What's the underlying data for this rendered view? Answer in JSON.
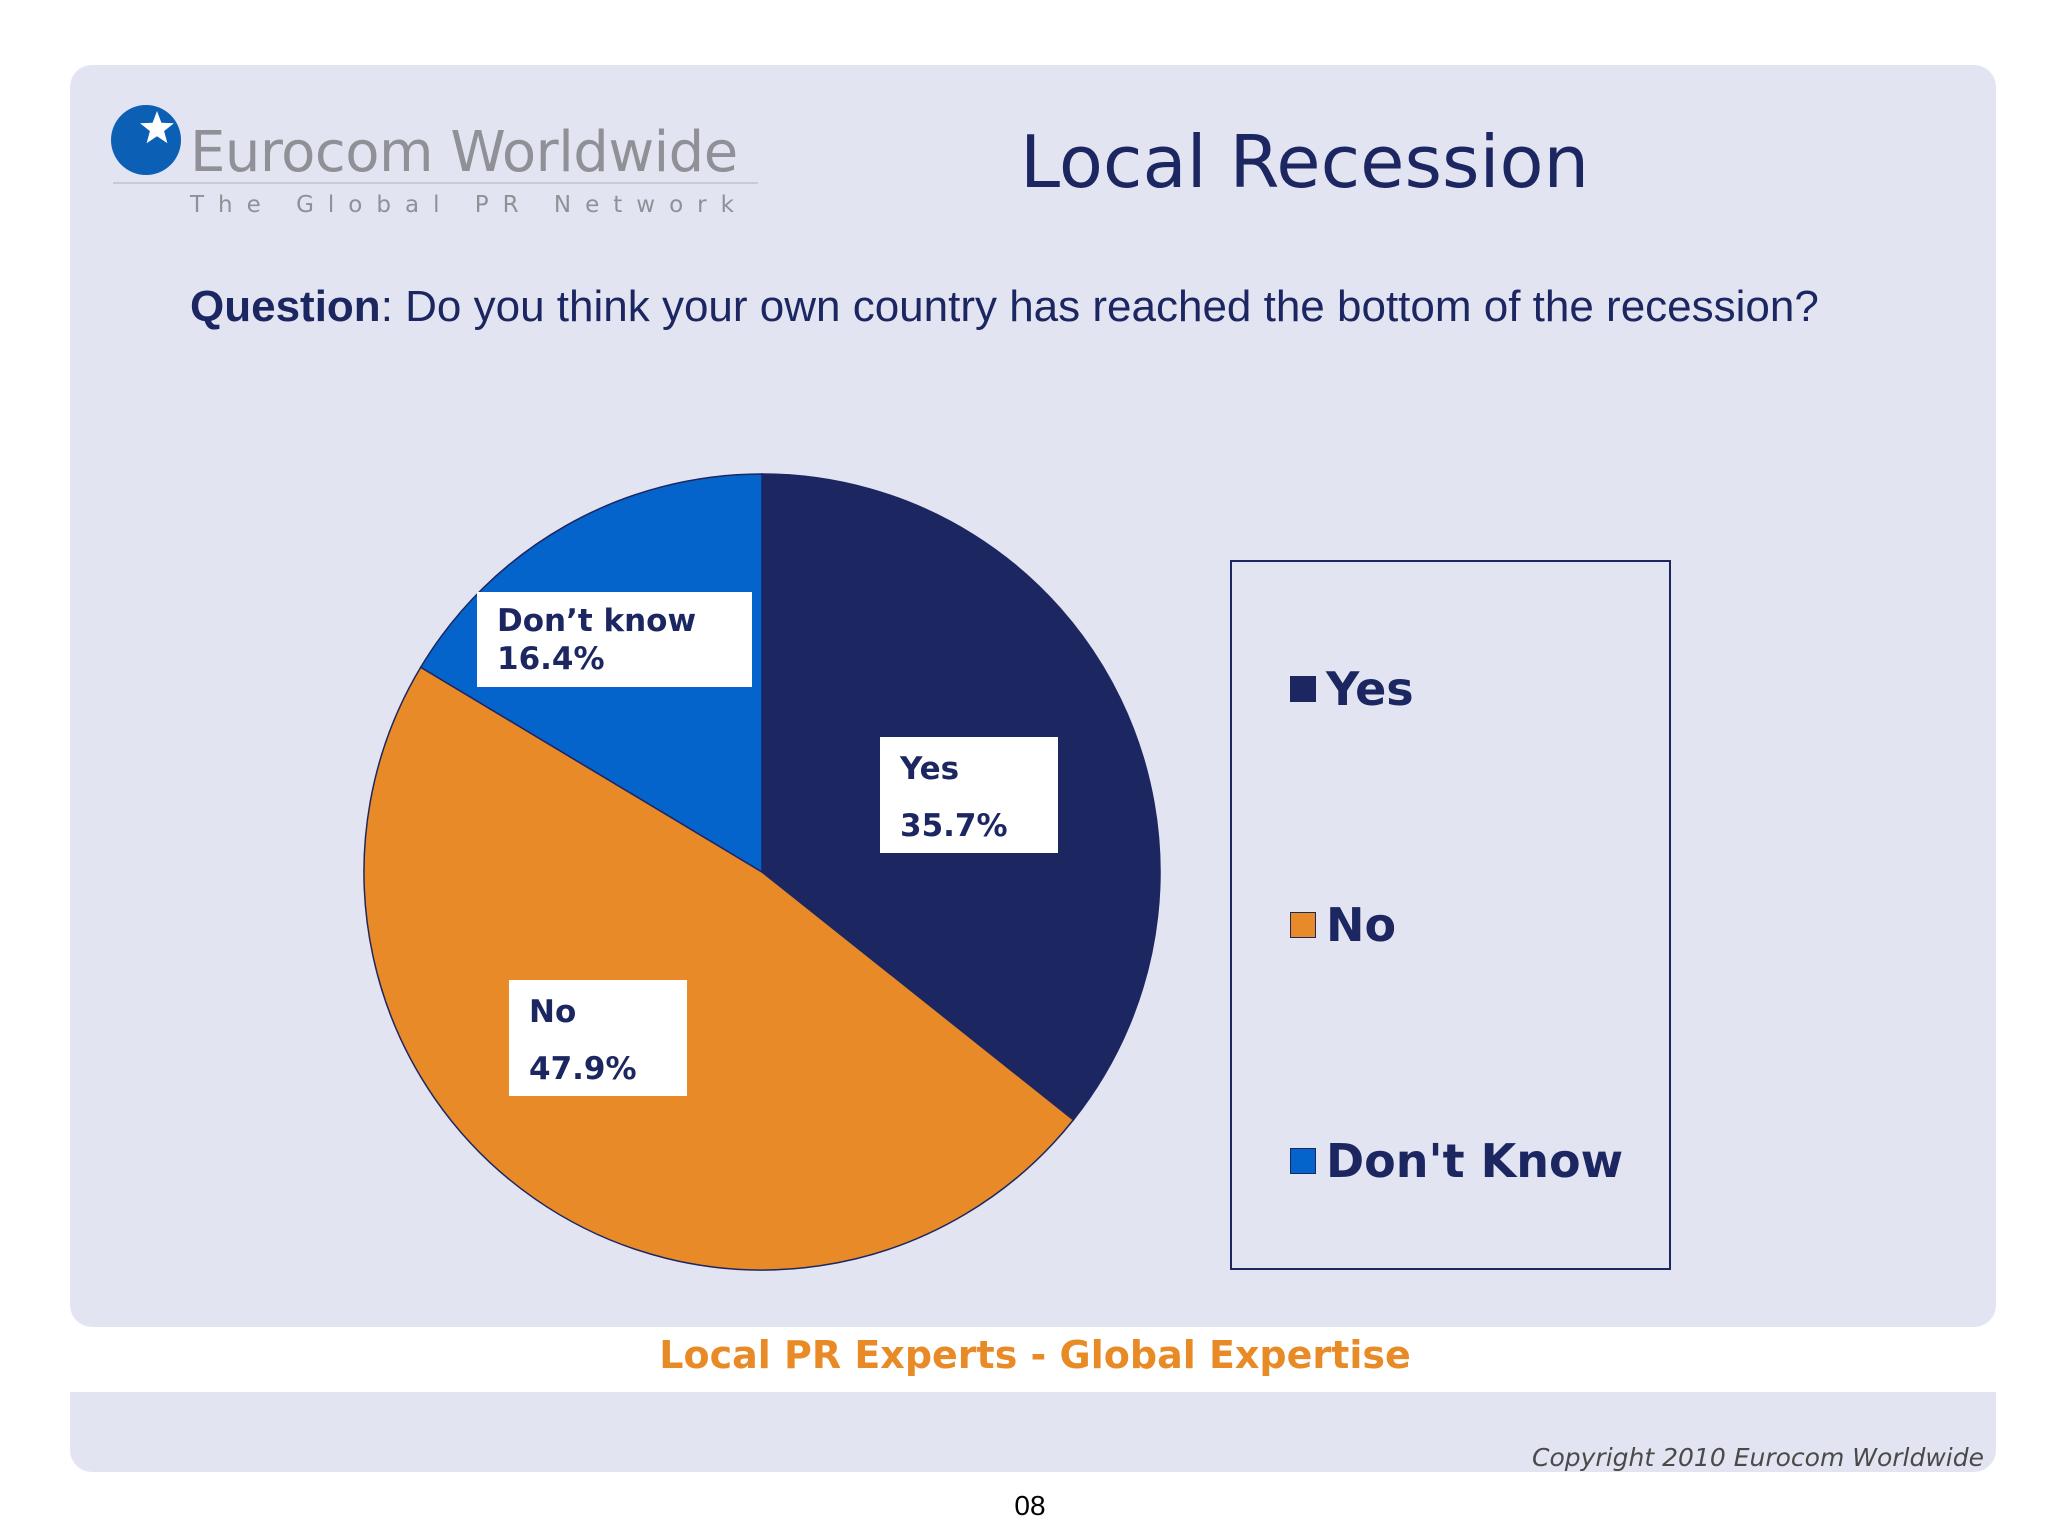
{
  "logo": {
    "name": "Eurocom Worldwide",
    "tagline": "The Global PR Network"
  },
  "slide": {
    "title": "Local Recession",
    "question_label": "Question",
    "question_text": ": Do you think your own country has reached the bottom of the recession?"
  },
  "chart_data": {
    "type": "pie",
    "title": "",
    "slices": [
      {
        "label": "Yes",
        "value": 35.7,
        "display": "35.7%",
        "color": "#1c2762"
      },
      {
        "label": "No",
        "value": 47.9,
        "display": "47.9%",
        "color": "#e88a28"
      },
      {
        "label": "Don’t know",
        "value": 16.4,
        "display": "16.4%",
        "color": "#0464cc"
      }
    ],
    "legend": {
      "position": "right",
      "entries": [
        {
          "label": "Yes",
          "color": "#1c2762"
        },
        {
          "label": "No",
          "color": "#e88a28"
        },
        {
          "label": "Don't Know",
          "color": "#0464cc"
        }
      ]
    }
  },
  "footer": {
    "tagline": "Local PR Experts - Global Expertise",
    "copyright": "Copyright 2010 Eurocom Worldwide",
    "page_number": "08"
  },
  "colors": {
    "panel_background": "#e3e4f2",
    "navy": "#1c2762",
    "orange": "#e88a28",
    "blue": "#0464cc"
  }
}
